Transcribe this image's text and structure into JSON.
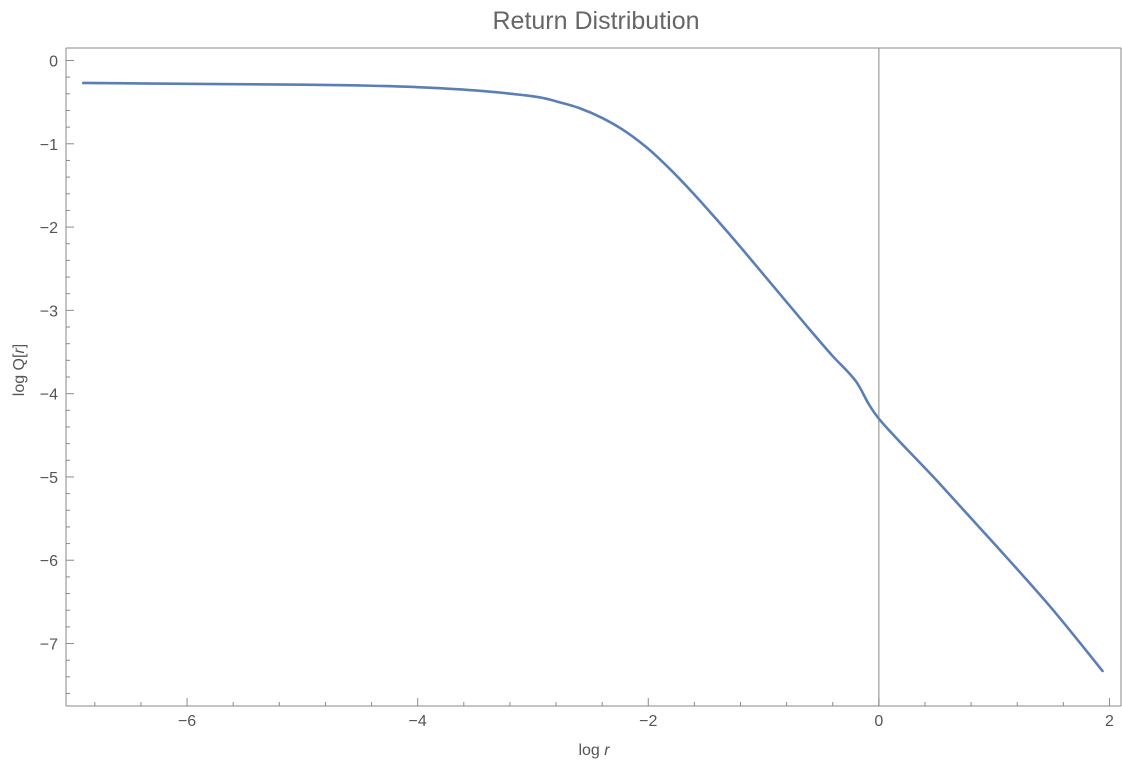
{
  "chart_data": {
    "type": "line",
    "title": "Return Distribution",
    "xlabel": {
      "prefix": "log ",
      "var": "r"
    },
    "ylabel": {
      "prefix": "log Q[",
      "var": "r",
      "suffix": "]"
    },
    "xlim": [
      -7.05,
      2.1
    ],
    "ylim": [
      -7.75,
      0.15
    ],
    "x_ticks": [
      -6,
      -4,
      -2,
      0,
      2
    ],
    "x_tick_labels": [
      "−6",
      "−4",
      "−2",
      "0",
      "2"
    ],
    "y_ticks": [
      0,
      -1,
      -2,
      -3,
      -4,
      -5,
      -6,
      -7
    ],
    "y_tick_labels": [
      "0",
      "−1",
      "−2",
      "−3",
      "−4",
      "−5",
      "−6",
      "−7"
    ],
    "reference_line_x": 0,
    "grid": false,
    "series": [
      {
        "color": "#5b7fb5",
        "x": [
          -6.9,
          -6.0,
          -5.0,
          -4.5,
          -4.0,
          -3.5,
          -3.0,
          -2.8,
          -2.6,
          -2.4,
          -2.2,
          -2.0,
          -1.8,
          -1.6,
          -1.4,
          -1.2,
          -1.0,
          -0.8,
          -0.6,
          -0.4,
          -0.2,
          0.0,
          0.5,
          1.0,
          1.5,
          1.94
        ],
        "y": [
          -0.27,
          -0.28,
          -0.29,
          -0.3,
          -0.32,
          -0.36,
          -0.43,
          -0.49,
          -0.57,
          -0.69,
          -0.85,
          -1.06,
          -1.32,
          -1.61,
          -1.92,
          -2.24,
          -2.57,
          -2.9,
          -3.23,
          -3.55,
          -3.85,
          -4.3,
          -5.04,
          -5.8,
          -6.58,
          -7.33
        ]
      }
    ]
  }
}
